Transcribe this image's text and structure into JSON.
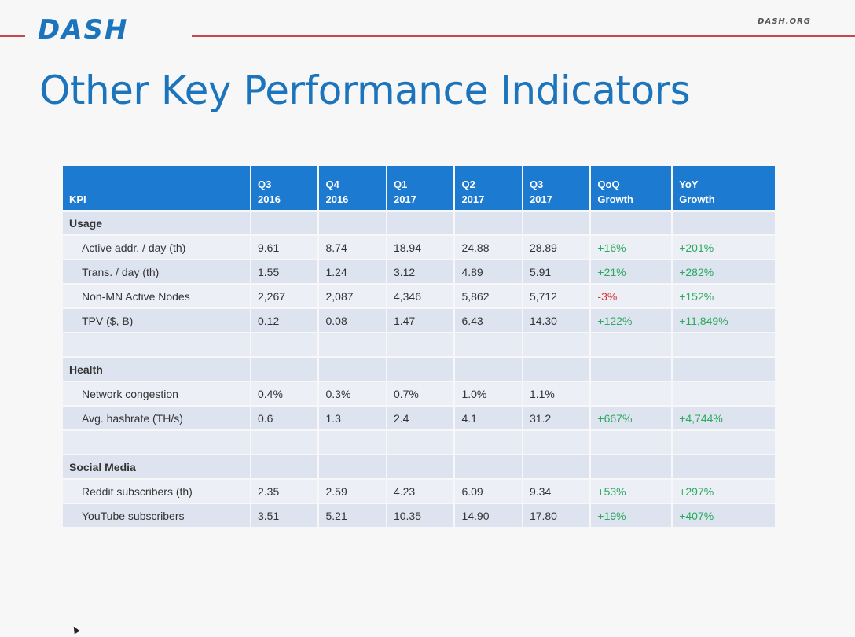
{
  "header": {
    "logo": "DASH",
    "site": "DASH.ORG"
  },
  "slide": {
    "title": "Other Key Performance Indicators"
  },
  "table": {
    "headers": [
      {
        "line1": "",
        "line2": "KPI"
      },
      {
        "line1": "Q3",
        "line2": "2016"
      },
      {
        "line1": "Q4",
        "line2": "2016"
      },
      {
        "line1": "Q1",
        "line2": "2017"
      },
      {
        "line1": "Q2",
        "line2": "2017"
      },
      {
        "line1": "Q3",
        "line2": "2017"
      },
      {
        "line1": "QoQ",
        "line2": "Growth"
      },
      {
        "line1": "YoY",
        "line2": "Growth"
      }
    ],
    "sections": {
      "usage": "Usage",
      "health": "Health",
      "social": "Social Media"
    },
    "rows": {
      "active": [
        "Active addr. / day (th)",
        "9.61",
        "8.74",
        "18.94",
        "24.88",
        "28.89",
        "+16%",
        "+201%"
      ],
      "trans": [
        "Trans. / day (th)",
        "1.55",
        "1.24",
        "3.12",
        "4.89",
        "5.91",
        "+21%",
        "+282%"
      ],
      "nodes": [
        "Non-MN Active Nodes",
        "2,267",
        "2,087",
        "4,346",
        "5,862",
        "5,712",
        "-3%",
        "+152%"
      ],
      "tpv": [
        "TPV ($, B)",
        "0.12",
        "0.08",
        "1.47",
        "6.43",
        "14.30",
        "+122%",
        "+11,849%"
      ],
      "congestion": [
        "Network congestion",
        "0.4%",
        "0.3%",
        "0.7%",
        "1.0%",
        "1.1%",
        "",
        ""
      ],
      "hashrate": [
        "Avg. hashrate (TH/s)",
        "0.6",
        "1.3",
        "2.4",
        "4.1",
        "31.2",
        "+667%",
        "+4,744%"
      ],
      "reddit": [
        "Reddit subscribers (th)",
        "2.35",
        "2.59",
        "4.23",
        "6.09",
        "9.34",
        "+53%",
        "+297%"
      ],
      "youtube": [
        "YouTube subscribers",
        "3.51",
        "5.21",
        "10.35",
        "14.90",
        "17.80",
        "+19%",
        "+407%"
      ]
    }
  },
  "colors": {
    "brand_blue": "#1c75bc",
    "header_blue": "#1c7ad1",
    "accent_red": "#c9474b",
    "positive": "#2aaa5e",
    "negative": "#d9373c"
  }
}
